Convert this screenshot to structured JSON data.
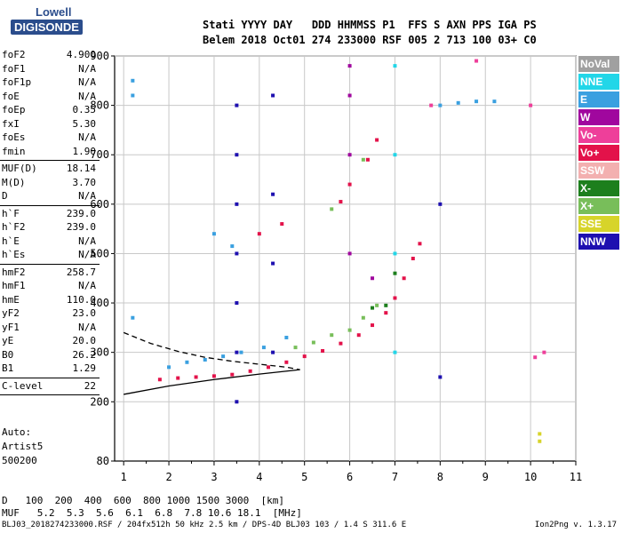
{
  "logo": {
    "line1": "Lowell",
    "line2": "DIGISONDE"
  },
  "header": {
    "line1": "Stati YYYY DAY   DDD HHMMSS P1  FFS S AXN PPS IGA PS",
    "line2": "Belem 2018 Oct01 274 233000 RSF 005 2 713 100 03+ C0"
  },
  "params": [
    {
      "group": [
        {
          "name": "foF2",
          "value": "4.900"
        },
        {
          "name": "foF1",
          "value": "N/A"
        },
        {
          "name": "foF1p",
          "value": "N/A"
        },
        {
          "name": "foE",
          "value": "N/A"
        },
        {
          "name": "foEp",
          "value": "0.35"
        },
        {
          "name": "fxI",
          "value": "5.30"
        },
        {
          "name": "foEs",
          "value": "N/A"
        },
        {
          "name": "fmin",
          "value": "1.90"
        }
      ]
    },
    {
      "group": [
        {
          "name": "MUF(D)",
          "value": "18.14"
        },
        {
          "name": "M(D)",
          "value": "3.70"
        },
        {
          "name": "D",
          "value": "N/A"
        }
      ]
    },
    {
      "group": [
        {
          "name": "h`F",
          "value": "239.0"
        },
        {
          "name": "h`F2",
          "value": "239.0"
        },
        {
          "name": "h`E",
          "value": "N/A"
        },
        {
          "name": "h`Es",
          "value": "N/A"
        }
      ]
    },
    {
      "group": [
        {
          "name": "hmF2",
          "value": "258.7"
        },
        {
          "name": "hmF1",
          "value": "N/A"
        },
        {
          "name": "hmE",
          "value": "110.0"
        },
        {
          "name": "yF2",
          "value": "23.0"
        },
        {
          "name": "yF1",
          "value": "N/A"
        },
        {
          "name": "yE",
          "value": "20.0"
        },
        {
          "name": "B0",
          "value": "26.2"
        },
        {
          "name": "B1",
          "value": "1.29"
        }
      ]
    },
    {
      "group": [
        {
          "name": "C-level",
          "value": "22"
        }
      ]
    }
  ],
  "auto": {
    "line1": "Auto:",
    "line2": "Artist5",
    "line3": "500200"
  },
  "legend": [
    {
      "label": "NoVal",
      "color": "#a0a0a0"
    },
    {
      "label": "NNE",
      "color": "#22d6e8"
    },
    {
      "label": "E",
      "color": "#3aa0e0"
    },
    {
      "label": "W",
      "color": "#a0079e"
    },
    {
      "label": "Vo-",
      "color": "#ee3f9a"
    },
    {
      "label": "Vo+",
      "color": "#e3124a"
    },
    {
      "label": "SSW",
      "color": "#f3b0b0"
    },
    {
      "label": "X-",
      "color": "#1d7f1d"
    },
    {
      "label": "X+",
      "color": "#78be5a"
    },
    {
      "label": "SSE",
      "color": "#d7d42a"
    },
    {
      "label": "NNW",
      "color": "#1e10b0"
    }
  ],
  "chart_data": {
    "type": "scatter",
    "xlim": [
      0.8,
      11
    ],
    "ylim": [
      80,
      900
    ],
    "x_ticks": [
      1,
      2,
      3,
      4,
      5,
      6,
      7,
      8,
      9,
      10,
      11
    ],
    "y_ticks": [
      200,
      300,
      400,
      500,
      600,
      700,
      800,
      900
    ],
    "y_tick_labels_extra": [
      80
    ],
    "grid": true,
    "series": [
      {
        "name": "Vo+",
        "points": [
          [
            1.8,
            245
          ],
          [
            2.2,
            248
          ],
          [
            2.6,
            250
          ],
          [
            3.0,
            252
          ],
          [
            3.4,
            255
          ],
          [
            3.8,
            262
          ],
          [
            4.2,
            270
          ],
          [
            4.6,
            280
          ],
          [
            5.0,
            292
          ],
          [
            5.4,
            303
          ],
          [
            5.8,
            318
          ],
          [
            6.2,
            335
          ],
          [
            6.5,
            355
          ],
          [
            6.8,
            380
          ],
          [
            7.0,
            410
          ],
          [
            7.2,
            450
          ],
          [
            7.4,
            490
          ],
          [
            7.55,
            520
          ],
          [
            5.8,
            605
          ],
          [
            6.0,
            640
          ],
          [
            6.4,
            690
          ],
          [
            6.6,
            730
          ],
          [
            4.5,
            560
          ],
          [
            4.0,
            540
          ]
        ]
      },
      {
        "name": "E",
        "points": [
          [
            2.0,
            270
          ],
          [
            2.4,
            280
          ],
          [
            2.8,
            285
          ],
          [
            3.2,
            292
          ],
          [
            3.6,
            300
          ],
          [
            4.1,
            310
          ],
          [
            4.6,
            330
          ],
          [
            3.4,
            515
          ],
          [
            3.0,
            540
          ],
          [
            8.0,
            800
          ],
          [
            8.4,
            805
          ],
          [
            8.8,
            808
          ],
          [
            9.2,
            808
          ],
          [
            1.2,
            850
          ],
          [
            1.2,
            820
          ],
          [
            1.2,
            370
          ]
        ]
      },
      {
        "name": "X+",
        "points": [
          [
            4.8,
            310
          ],
          [
            5.2,
            320
          ],
          [
            5.6,
            335
          ],
          [
            6.0,
            345
          ],
          [
            6.3,
            370
          ],
          [
            6.6,
            395
          ],
          [
            5.6,
            590
          ],
          [
            6.3,
            690
          ]
        ]
      },
      {
        "name": "X-",
        "points": [
          [
            6.5,
            390
          ],
          [
            6.8,
            395
          ],
          [
            7.0,
            460
          ]
        ]
      },
      {
        "name": "W",
        "points": [
          [
            6.0,
            500
          ],
          [
            6.0,
            700
          ],
          [
            6.0,
            820
          ],
          [
            6.0,
            880
          ],
          [
            6.5,
            450
          ]
        ]
      },
      {
        "name": "NNW",
        "points": [
          [
            3.5,
            200
          ],
          [
            3.5,
            300
          ],
          [
            3.5,
            400
          ],
          [
            3.5,
            500
          ],
          [
            3.5,
            600
          ],
          [
            3.5,
            700
          ],
          [
            3.5,
            800
          ],
          [
            4.3,
            300
          ],
          [
            4.3,
            480
          ],
          [
            4.3,
            620
          ],
          [
            4.3,
            820
          ],
          [
            8.0,
            600
          ],
          [
            8.0,
            250
          ]
        ]
      },
      {
        "name": "SSE",
        "points": [
          [
            10.2,
            120
          ],
          [
            10.2,
            135
          ]
        ]
      },
      {
        "name": "NNE",
        "points": [
          [
            7.0,
            300
          ],
          [
            7.0,
            500
          ],
          [
            7.0,
            700
          ],
          [
            7.0,
            880
          ]
        ]
      },
      {
        "name": "Vo-",
        "points": [
          [
            10.0,
            800
          ],
          [
            10.1,
            290
          ],
          [
            10.3,
            300
          ],
          [
            8.8,
            890
          ],
          [
            7.8,
            800
          ]
        ]
      }
    ],
    "lines": [
      {
        "name": "profile-lower",
        "points": [
          [
            1.0,
            215
          ],
          [
            2.0,
            232
          ],
          [
            3.0,
            245
          ],
          [
            4.0,
            256
          ],
          [
            4.9,
            265
          ]
        ]
      },
      {
        "name": "profile-upper-dashed",
        "points": [
          [
            1.0,
            340
          ],
          [
            1.6,
            318
          ],
          [
            2.2,
            302
          ],
          [
            2.8,
            290
          ],
          [
            3.4,
            282
          ],
          [
            4.0,
            276
          ],
          [
            4.6,
            270
          ],
          [
            4.9,
            265
          ]
        ]
      }
    ]
  },
  "dtable": {
    "d_label": "D",
    "d_values": [
      "100",
      "200",
      "400",
      "600",
      "800",
      "1000",
      "1500",
      "3000",
      "[km]"
    ],
    "muf_label": "MUF",
    "muf_values": [
      "5.2",
      "5.3",
      "5.6",
      "6.1",
      "6.8",
      "7.8",
      "10.6",
      "18.1",
      "[MHz]"
    ]
  },
  "footer": {
    "left": "BLJ03_2018274233000.RSF / 204fx512h 50 kHz 2.5 km / DPS-4D BLJ03 103 / 1.4 S 311.6 E",
    "right": "Ion2Png v. 1.3.17"
  }
}
